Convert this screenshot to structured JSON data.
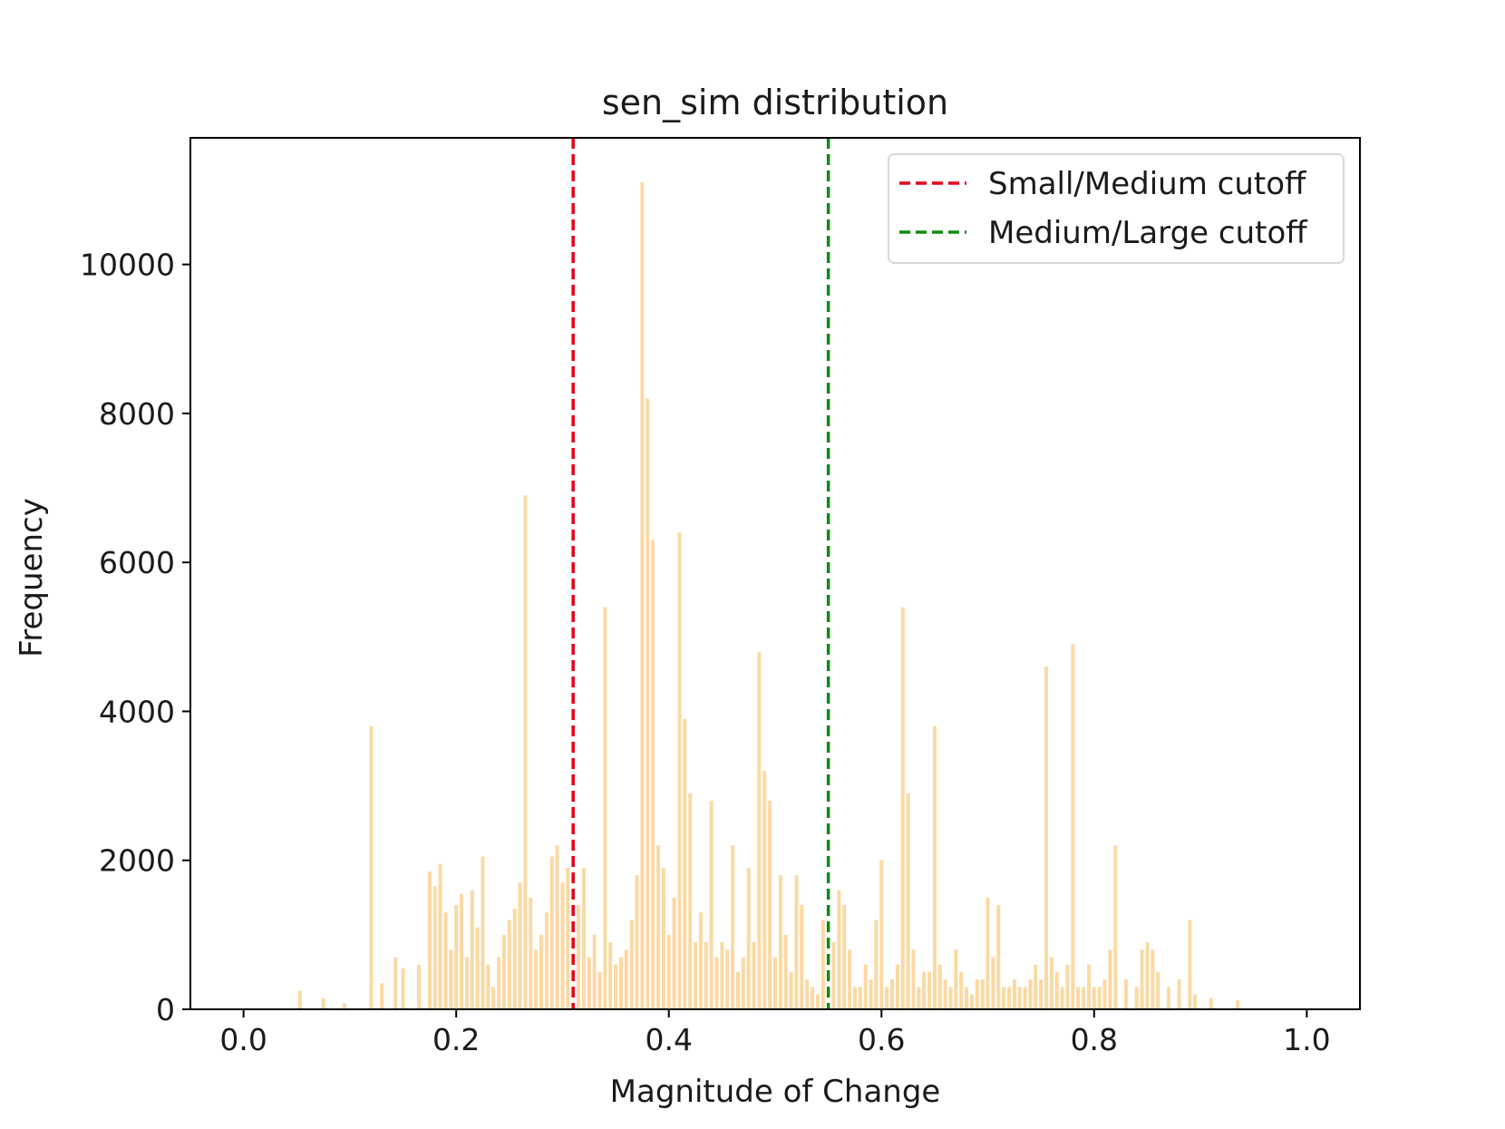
{
  "chart_data": {
    "type": "bar",
    "title": "sen_sim distribution",
    "xlabel": "Magnitude of Change",
    "ylabel": "Frequency",
    "xlim": [
      -0.05,
      1.05
    ],
    "ylim": [
      0,
      11700
    ],
    "x_ticks": [
      "0.0",
      "0.2",
      "0.4",
      "0.6",
      "0.8",
      "1.0"
    ],
    "y_ticks": [
      "0",
      "2000",
      "4000",
      "6000",
      "8000",
      "10000"
    ],
    "bar_color": "#fbd9a3",
    "series": [
      {
        "x": [
          0.053,
          0.075,
          0.095,
          0.12,
          0.13,
          0.143,
          0.15,
          0.165,
          0.175,
          0.18,
          0.185,
          0.19,
          0.195,
          0.2,
          0.205,
          0.21,
          0.215,
          0.22,
          0.225,
          0.23,
          0.235,
          0.24,
          0.245,
          0.25,
          0.255,
          0.26,
          0.265,
          0.27,
          0.275,
          0.28,
          0.285,
          0.29,
          0.295,
          0.3,
          0.305,
          0.315,
          0.32,
          0.325,
          0.33,
          0.335,
          0.34,
          0.345,
          0.35,
          0.355,
          0.36,
          0.365,
          0.37,
          0.375,
          0.38,
          0.385,
          0.39,
          0.395,
          0.4,
          0.405,
          0.41,
          0.415,
          0.42,
          0.425,
          0.43,
          0.435,
          0.44,
          0.445,
          0.45,
          0.455,
          0.46,
          0.465,
          0.47,
          0.475,
          0.48,
          0.485,
          0.49,
          0.495,
          0.5,
          0.505,
          0.51,
          0.515,
          0.52,
          0.525,
          0.53,
          0.535,
          0.54,
          0.545,
          0.555,
          0.56,
          0.565,
          0.57,
          0.575,
          0.58,
          0.585,
          0.59,
          0.595,
          0.6,
          0.605,
          0.61,
          0.615,
          0.62,
          0.625,
          0.63,
          0.635,
          0.64,
          0.645,
          0.65,
          0.655,
          0.66,
          0.665,
          0.67,
          0.675,
          0.68,
          0.685,
          0.69,
          0.695,
          0.7,
          0.705,
          0.71,
          0.715,
          0.72,
          0.725,
          0.73,
          0.735,
          0.74,
          0.745,
          0.75,
          0.755,
          0.76,
          0.765,
          0.77,
          0.775,
          0.78,
          0.785,
          0.79,
          0.795,
          0.8,
          0.805,
          0.81,
          0.815,
          0.82,
          0.83,
          0.84,
          0.845,
          0.85,
          0.855,
          0.86,
          0.87,
          0.88,
          0.89,
          0.895,
          0.91,
          0.935
        ],
        "values": [
          250,
          150,
          80,
          3800,
          350,
          700,
          550,
          600,
          1850,
          1650,
          1950,
          1300,
          800,
          1400,
          1550,
          700,
          1600,
          1100,
          2050,
          600,
          300,
          700,
          1000,
          1200,
          1350,
          1700,
          6900,
          1500,
          800,
          1000,
          1300,
          2050,
          2200,
          1700,
          1900,
          1400,
          1900,
          700,
          1000,
          500,
          5400,
          900,
          600,
          700,
          800,
          1200,
          1800,
          11100,
          8200,
          6300,
          2200,
          1900,
          1000,
          1500,
          6400,
          3900,
          2900,
          900,
          1300,
          900,
          2800,
          700,
          900,
          800,
          2200,
          500,
          700,
          1900,
          900,
          4800,
          3200,
          2800,
          700,
          1800,
          1000,
          500,
          1800,
          1400,
          400,
          300,
          200,
          1200,
          900,
          1600,
          1400,
          800,
          300,
          300,
          600,
          400,
          1200,
          2000,
          300,
          400,
          600,
          5400,
          2900,
          800,
          300,
          500,
          500,
          3800,
          600,
          400,
          300,
          800,
          500,
          300,
          200,
          400,
          400,
          1500,
          700,
          1400,
          300,
          300,
          400,
          300,
          300,
          400,
          600,
          400,
          4600,
          700,
          500,
          300,
          600,
          4900,
          300,
          300,
          600,
          300,
          300,
          400,
          800,
          2200,
          400,
          300,
          800,
          900,
          800,
          500,
          300,
          400,
          1200,
          200,
          150,
          120
        ]
      }
    ],
    "vlines": [
      {
        "x": 0.31,
        "color": "#e3001b",
        "label": "Small/Medium cutoff"
      },
      {
        "x": 0.55,
        "color": "#138a13",
        "label": "Medium/Large cutoff"
      }
    ],
    "legend_position": "top-right"
  }
}
